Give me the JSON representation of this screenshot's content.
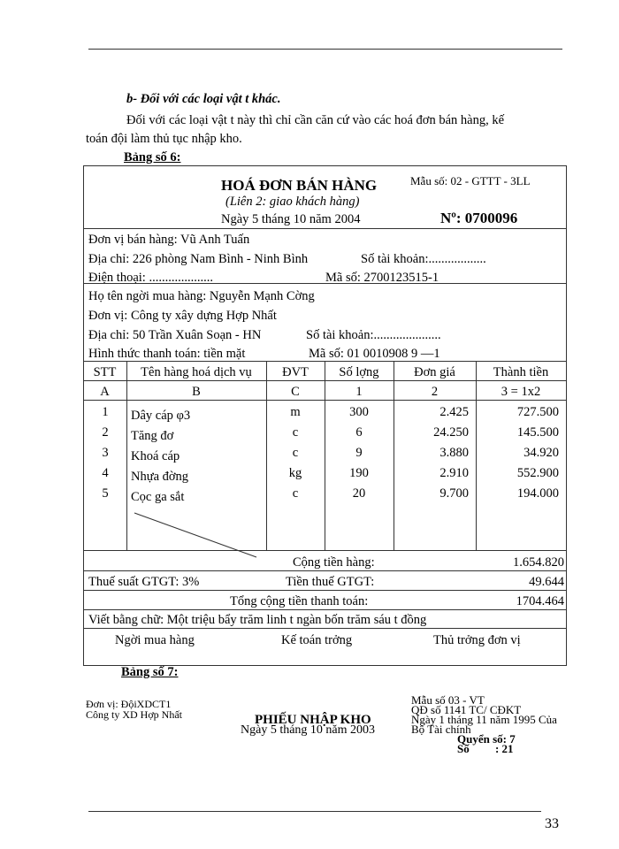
{
  "intro": {
    "heading": "b- Đối với các loại vật t   khác.",
    "para_line1": "Đối với các loại vật t   này thì chỉ cần căn cứ vào các hoá đơn bán hàng, kế",
    "para_line2": "toán đội  làm thủ tục nhập kho.",
    "table6_label": "Bảng số 6:"
  },
  "invoice": {
    "title": "HOÁ ĐƠN BÁN HÀNG",
    "subtitle": "(Liên 2: giao khách hàng)",
    "date": "Ngày 5 tháng 10 năm 2004",
    "form_no": "Mẫu số: 02 - GTTT - 3LL",
    "number": "Nº: 0700096",
    "seller": {
      "unit": "Đơn vị bán hàng: Vũ Anh Tuấn",
      "address": "Địa chỉ: 226 phòng   Nam Bình - Ninh Bình",
      "account": "Số tài khoản:..................",
      "phone": "Điện thoại:  ....................",
      "tax_code": "Mã số: 2700123515-1"
    },
    "buyer": {
      "name": "Họ tên ngời   mua hàng: Nguyễn Mạnh Cờng",
      "unit": "Đơn vị: Công ty xây dựng Hợp Nhất",
      "address": "Địa chỉ: 50 Trần Xuân Soạn - HN",
      "account": "Số tài khoản:.....................",
      "payment": "Hình thức thanh toán: tiền mặt",
      "tax_code": "Mã số: 01 0010908 9 —1"
    },
    "columns": [
      "STT",
      "Tên hàng hoá dịch vụ",
      "ĐVT",
      "Số lợng",
      "Đơn giá",
      "Thành tiền"
    ],
    "column_codes": [
      "A",
      "B",
      "C",
      "1",
      "2",
      "3 = 1x2"
    ],
    "rows": [
      [
        "1",
        "Dây cáp φ3",
        "m",
        "300",
        "2.425",
        "727.500"
      ],
      [
        "2",
        "Tăng đơ",
        "c",
        "6",
        "24.250",
        "145.500"
      ],
      [
        "3",
        "Khoá cáp",
        "c",
        "9",
        "3.880",
        "34.920"
      ],
      [
        "4",
        "Nhựa đờng",
        "kg",
        "190",
        "2.910",
        "552.900"
      ],
      [
        "5",
        "Cọc ga sắt",
        "c",
        "20",
        "9.700",
        "194.000"
      ]
    ],
    "subtotal_label": "Cộng tiền hàng:",
    "subtotal": "1.654.820",
    "vat_rate": "Thuế suất GTGT: 3%",
    "vat_label": "Tiền thuế GTGT:",
    "vat": "49.644",
    "total_label": "Tổng cộng tiền thanh toán:",
    "total": "1704.464",
    "in_words": "Viết bằng chữ: Một triệu bẩy trăm linh t   ngàn bốn trăm sáu t   đồng",
    "signatures": [
      "Ngời   mua hàng",
      "Kế toán trởng",
      "Thủ trởng   đơn vị"
    ]
  },
  "table7": {
    "label": "Bảng số 7:",
    "unit_line1": "Đơn vị: ĐộiXDCT1",
    "unit_line2": "Công ty XD Hợp Nhất",
    "title": "PHIẾU NHẬP KHO",
    "date": "Ngày 5 tháng 10 năm 2003",
    "form_lines": [
      "Mẫu số 03 - VT",
      "QĐ số 1141 TC/ CĐKT",
      "Ngày 1 tháng 11 năm 1995 Của",
      "Bộ Tài chính"
    ],
    "book_no": "Quyển số: 7",
    "no": "Số         : 21"
  },
  "page_number": "33"
}
